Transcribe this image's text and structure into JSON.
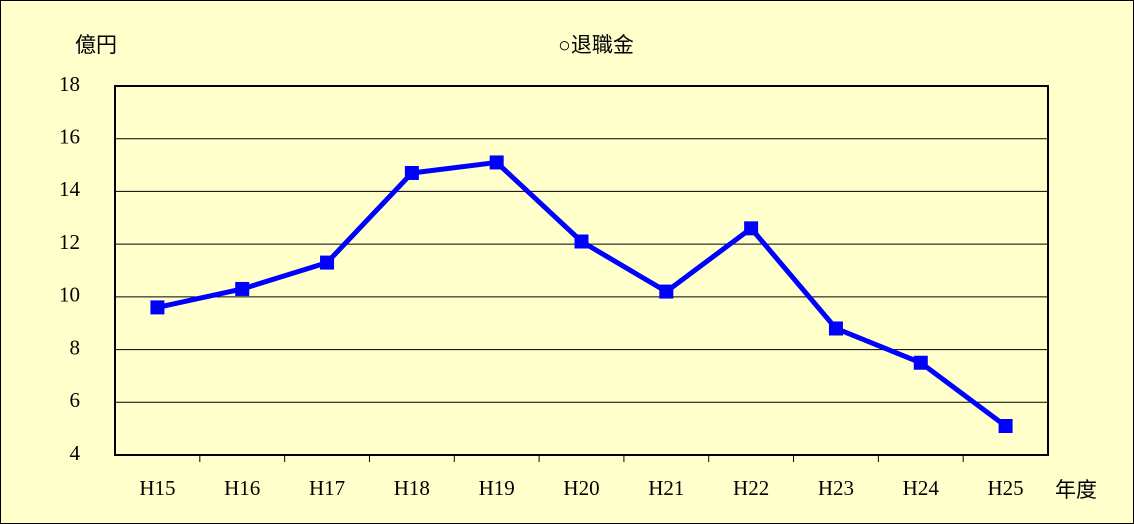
{
  "chart_data": {
    "type": "line",
    "title": "○退職金",
    "y_label": "億円",
    "x_label": "年度",
    "categories": [
      "H15",
      "H16",
      "H17",
      "H18",
      "H19",
      "H20",
      "H21",
      "H22",
      "H23",
      "H24",
      "H25"
    ],
    "series": [
      {
        "name": "退職金",
        "color": "#0000ff",
        "values": [
          9.6,
          10.3,
          11.3,
          14.7,
          15.1,
          12.1,
          10.2,
          12.6,
          8.8,
          7.5,
          5.1
        ]
      }
    ],
    "ylim": [
      4,
      18
    ],
    "yticks": [
      4,
      6,
      8,
      10,
      12,
      14,
      16,
      18
    ],
    "grid": true,
    "background": "#ffffcc"
  }
}
